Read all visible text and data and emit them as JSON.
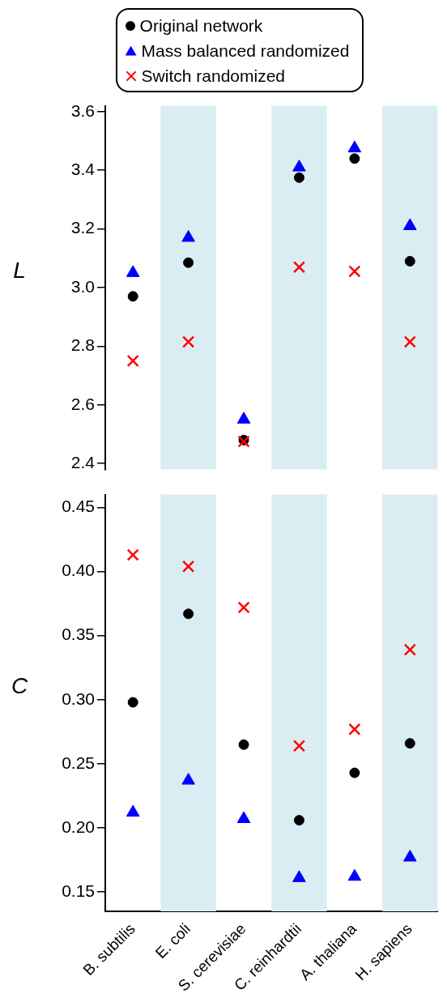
{
  "chart_data": [
    {
      "type": "scatter",
      "ylabel": "L",
      "categories": [
        "B. subtilis",
        "E. coli",
        "S. cerevisiae",
        "C. reinhardtii",
        "A. thaliana",
        "H. sapiens"
      ],
      "ylim": [
        2.38,
        3.62
      ],
      "yticks": [
        {
          "value": 2.4,
          "label": "2.4"
        },
        {
          "value": 2.6,
          "label": "2.6"
        },
        {
          "value": 2.8,
          "label": "2.8"
        },
        {
          "value": 3.0,
          "label": "3.0"
        },
        {
          "value": 3.2,
          "label": "3.2"
        },
        {
          "value": 3.4,
          "label": "3.4"
        },
        {
          "value": 3.6,
          "label": "3.6"
        }
      ],
      "tick_labels": "y",
      "grid": false,
      "legend": "top",
      "bands": [
        {
          "axis": "x",
          "from": "E. coli",
          "to": "E. coli",
          "color": "#daedf2"
        },
        {
          "axis": "x",
          "from": "C. reinhardtii",
          "to": "C. reinhardtii",
          "color": "#daedf2"
        },
        {
          "axis": "x",
          "from": "H. sapiens",
          "to": "H. sapiens",
          "color": "#daedf2"
        }
      ],
      "series": [
        {
          "name": "Original network",
          "color": "#000000",
          "marker": "circle",
          "values": [
            2.97,
            3.085,
            2.48,
            3.375,
            3.44,
            3.09
          ]
        },
        {
          "name": "Mass balanced randomized",
          "color": "#0000ff",
          "marker": "triangle",
          "values": [
            3.05,
            3.17,
            2.55,
            3.41,
            3.475,
            3.21
          ]
        },
        {
          "name": "Switch randomized",
          "color": "#ff0000",
          "marker": "cross",
          "values": [
            2.75,
            2.815,
            2.475,
            3.07,
            3.055,
            2.815
          ]
        }
      ]
    },
    {
      "type": "scatter",
      "ylabel": "C",
      "categories": [
        "B. subtilis",
        "E. coli",
        "S. cerevisiae",
        "C. reinhardtii",
        "A. thaliana",
        "H. sapiens"
      ],
      "ylim": [
        0.135,
        0.46
      ],
      "yticks": [
        {
          "value": 0.15,
          "label": "0.15"
        },
        {
          "value": 0.2,
          "label": "0.20"
        },
        {
          "value": 0.25,
          "label": "0.25"
        },
        {
          "value": 0.3,
          "label": "0.30"
        },
        {
          "value": 0.35,
          "label": "0.35"
        },
        {
          "value": 0.4,
          "label": "0.40"
        },
        {
          "value": 0.45,
          "label": "0.45"
        }
      ],
      "grid": false,
      "bands": [
        {
          "axis": "x",
          "from": "E. coli",
          "to": "E. coli",
          "color": "#daedf2"
        },
        {
          "axis": "x",
          "from": "C. reinhardtii",
          "to": "C. reinhardtii",
          "color": "#daedf2"
        },
        {
          "axis": "x",
          "from": "H. sapiens",
          "to": "H. sapiens",
          "color": "#daedf2"
        }
      ],
      "series": [
        {
          "color": "#000000",
          "marker": "circle",
          "values": [
            0.298,
            0.367,
            0.265,
            0.206,
            0.243,
            0.266
          ]
        },
        {
          "color": "#0000ff",
          "marker": "triangle",
          "values": [
            0.212,
            0.237,
            0.207,
            0.161,
            0.162,
            0.177
          ]
        },
        {
          "color": "#ff0000",
          "marker": "cross",
          "values": [
            0.413,
            0.404,
            0.372,
            0.264,
            0.277,
            0.339
          ]
        }
      ]
    }
  ]
}
